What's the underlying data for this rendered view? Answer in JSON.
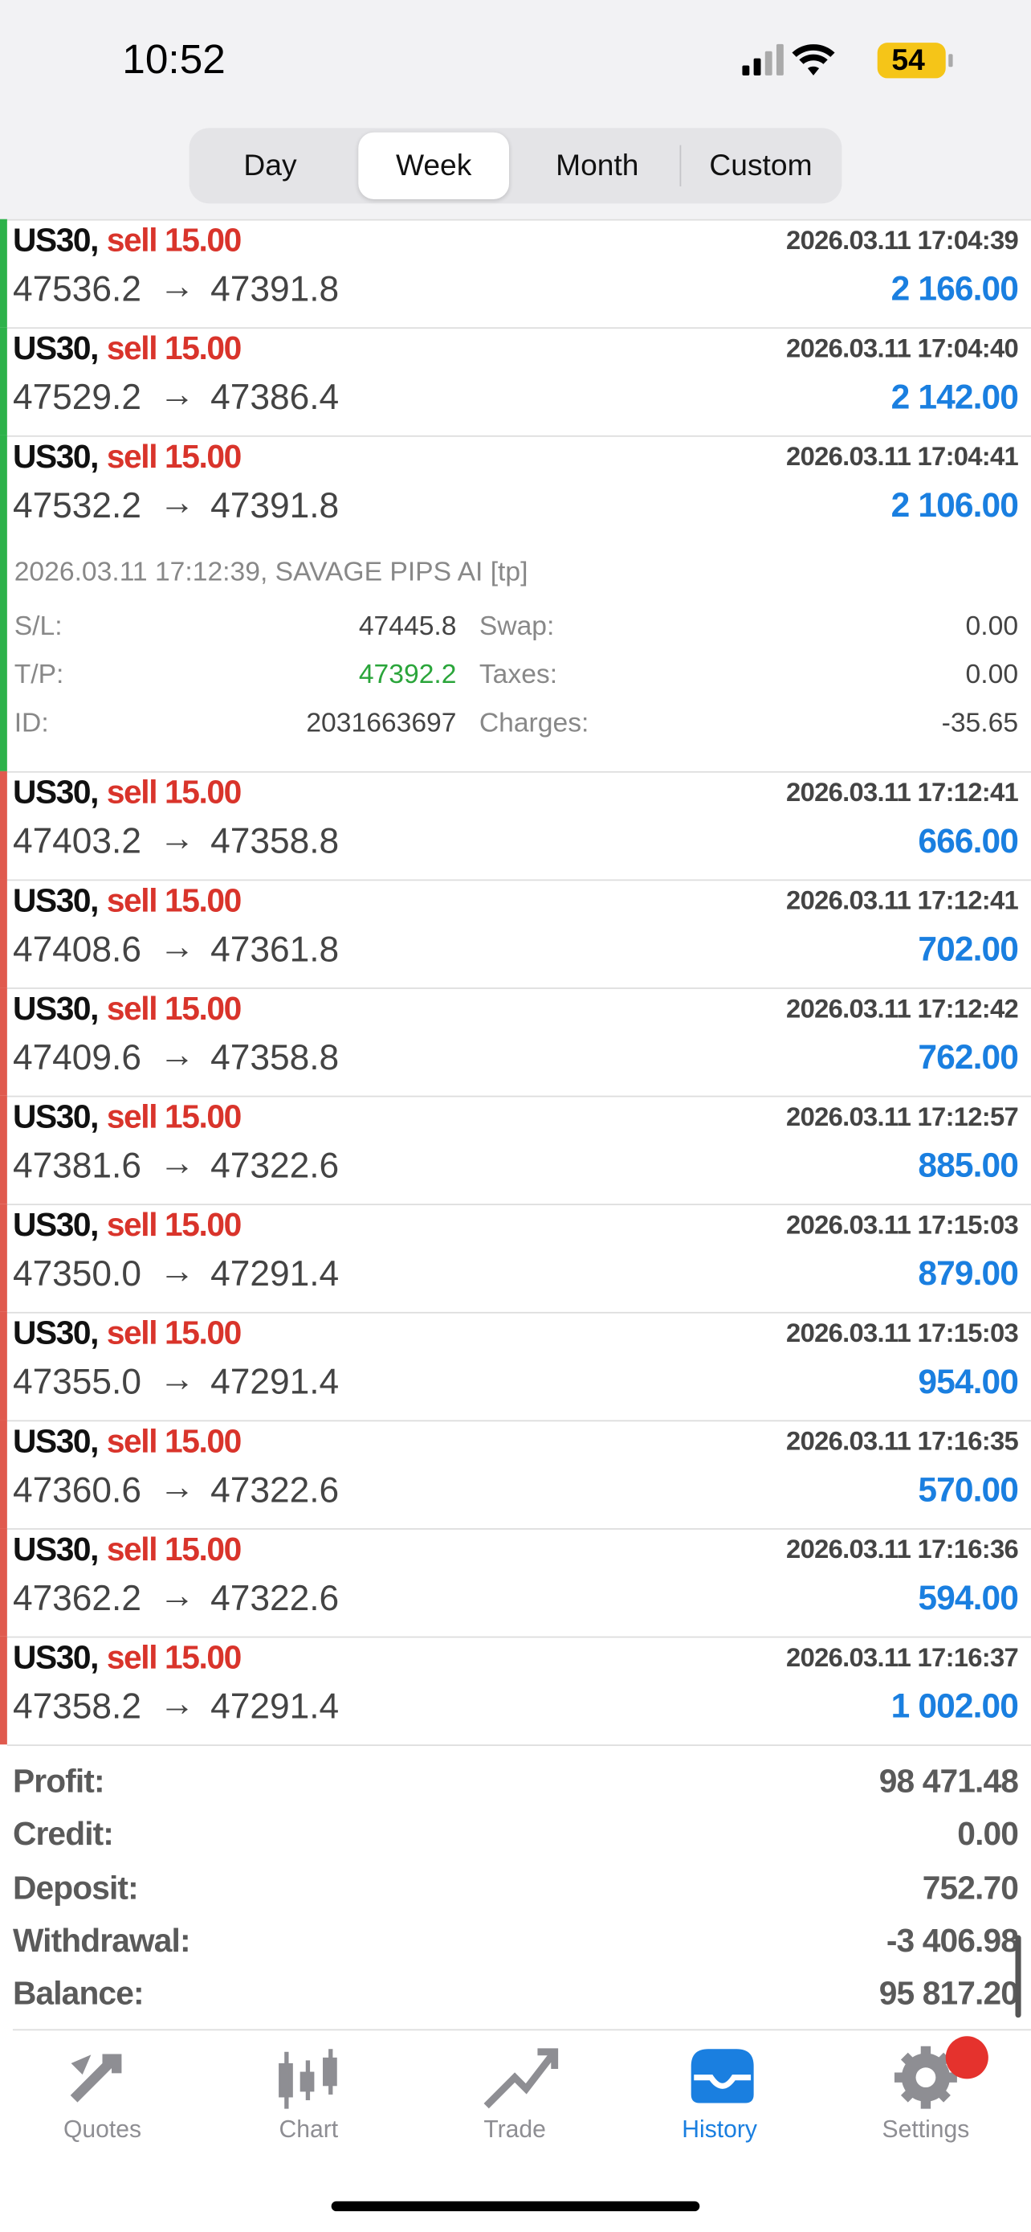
{
  "status_bar": {
    "time": "10:52",
    "battery": "54"
  },
  "period_tabs": {
    "items": [
      "Day",
      "Week",
      "Month",
      "Custom"
    ],
    "selected": 1
  },
  "arrow": "→",
  "trades": [
    {
      "symbol": "US30,",
      "side": "sell 15.00",
      "open": "47536.2",
      "close": "47391.8",
      "time": "2026.03.11 17:04:39",
      "profit": "2 166.00",
      "color": "#2db24a"
    },
    {
      "symbol": "US30,",
      "side": "sell 15.00",
      "open": "47529.2",
      "close": "47386.4",
      "time": "2026.03.11 17:04:40",
      "profit": "2 142.00",
      "color": "#2db24a"
    },
    {
      "symbol": "US30,",
      "side": "sell 15.00",
      "open": "47532.2",
      "close": "47391.8",
      "time": "2026.03.11 17:04:41",
      "profit": "2 106.00",
      "color": "#2db24a",
      "detail": {
        "comment": "2026.03.11 17:12:39, SAVAGE PIPS AI [tp]",
        "fields": [
          [
            "S/L:",
            "47445.8",
            "Swap:",
            "0.00"
          ],
          [
            "T/P:",
            "47392.2",
            "Taxes:",
            "0.00"
          ],
          [
            "ID:",
            "2031663697",
            "Charges:",
            "-35.65"
          ]
        ]
      }
    },
    {
      "symbol": "US30,",
      "side": "sell 15.00",
      "open": "47403.2",
      "close": "47358.8",
      "time": "2026.03.11 17:12:41",
      "profit": "666.00",
      "color": "#e05a4e"
    },
    {
      "symbol": "US30,",
      "side": "sell 15.00",
      "open": "47408.6",
      "close": "47361.8",
      "time": "2026.03.11 17:12:41",
      "profit": "702.00",
      "color": "#e05a4e"
    },
    {
      "symbol": "US30,",
      "side": "sell 15.00",
      "open": "47409.6",
      "close": "47358.8",
      "time": "2026.03.11 17:12:42",
      "profit": "762.00",
      "color": "#e05a4e"
    },
    {
      "symbol": "US30,",
      "side": "sell 15.00",
      "open": "47381.6",
      "close": "47322.6",
      "time": "2026.03.11 17:12:57",
      "profit": "885.00",
      "color": "#e05a4e"
    },
    {
      "symbol": "US30,",
      "side": "sell 15.00",
      "open": "47350.0",
      "close": "47291.4",
      "time": "2026.03.11 17:15:03",
      "profit": "879.00",
      "color": "#e05a4e"
    },
    {
      "symbol": "US30,",
      "side": "sell 15.00",
      "open": "47355.0",
      "close": "47291.4",
      "time": "2026.03.11 17:15:03",
      "profit": "954.00",
      "color": "#e05a4e"
    },
    {
      "symbol": "US30,",
      "side": "sell 15.00",
      "open": "47360.6",
      "close": "47322.6",
      "time": "2026.03.11 17:16:35",
      "profit": "570.00",
      "color": "#e05a4e"
    },
    {
      "symbol": "US30,",
      "side": "sell 15.00",
      "open": "47362.2",
      "close": "47322.6",
      "time": "2026.03.11 17:16:36",
      "profit": "594.00",
      "color": "#e05a4e"
    },
    {
      "symbol": "US30,",
      "side": "sell 15.00",
      "open": "47358.2",
      "close": "47291.4",
      "time": "2026.03.11 17:16:37",
      "profit": "1 002.00",
      "color": "#e05a4e"
    }
  ],
  "summary": [
    [
      "Profit:",
      "98 471.48"
    ],
    [
      "Credit:",
      "0.00"
    ],
    [
      "Deposit:",
      "752.70"
    ],
    [
      "Withdrawal:",
      "-3 406.98"
    ],
    [
      "Balance:",
      "95 817.20"
    ]
  ],
  "tab_bar": {
    "items": [
      "Quotes",
      "Chart",
      "Trade",
      "History",
      "Settings"
    ],
    "selected": 3,
    "badge": "1"
  }
}
